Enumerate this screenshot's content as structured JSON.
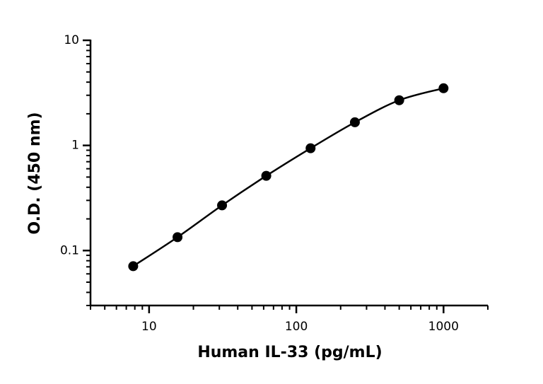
{
  "chart_data": {
    "type": "scatter",
    "x_label": "Human IL-33 (pg/mL)",
    "y_label": "O.D. (450 nm)",
    "x_log": true,
    "y_log": true,
    "xlim": [
      4,
      2000
    ],
    "ylim": [
      0.03,
      10
    ],
    "xticks": [
      10,
      100,
      1000
    ],
    "yticks": [
      0.1,
      1,
      10
    ],
    "x": [
      7.8,
      15.6,
      31.3,
      62.5,
      125,
      250,
      500,
      1000
    ],
    "values": [
      0.071,
      0.134,
      0.269,
      0.514,
      0.94,
      1.66,
      2.69,
      3.5
    ],
    "color": "#000000",
    "line": true
  }
}
